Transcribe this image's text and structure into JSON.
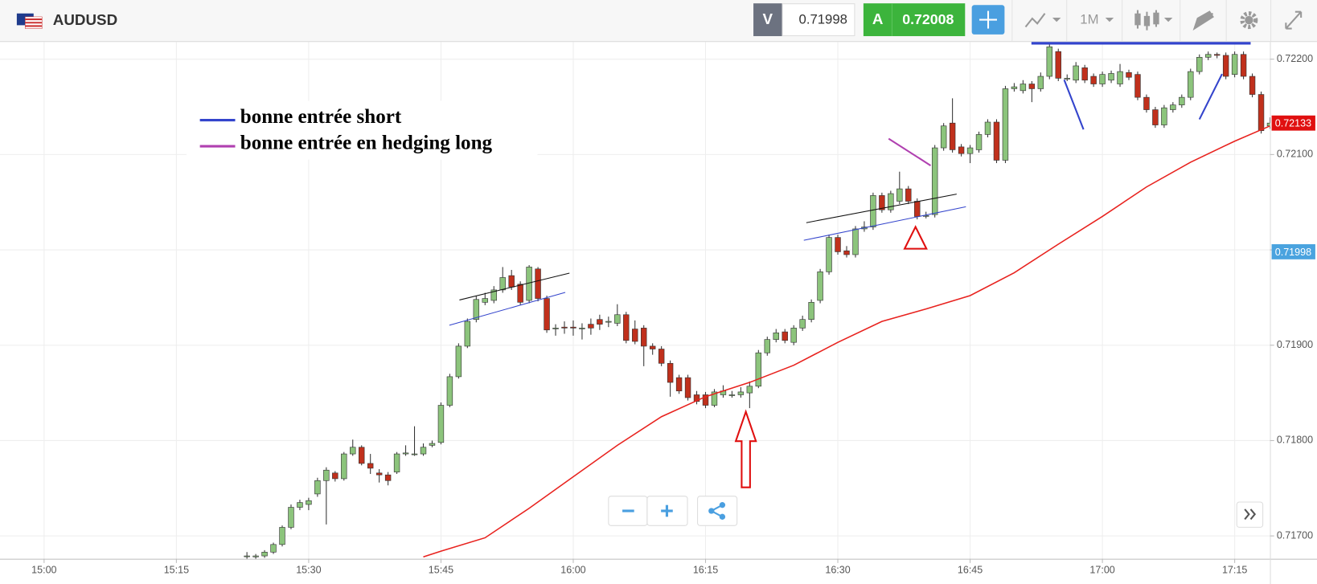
{
  "header": {
    "symbol": "AUDUSD",
    "bid_label": "V",
    "bid": "0.71998",
    "ask_label": "A",
    "ask": "0.72008",
    "timeframe": "1M"
  },
  "chart_data": {
    "type": "candlestick",
    "up_color": "#8cc47c",
    "down_color": "#c0301c",
    "outline_color": "#333333",
    "grid": true,
    "xlim": [
      "14:55",
      "17:19"
    ],
    "xticks": [
      "15:00",
      "15:15",
      "15:30",
      "15:45",
      "16:00",
      "16:15",
      "16:30",
      "16:45",
      "17:00",
      "17:15"
    ],
    "ylim": [
      0.71676,
      0.72218
    ],
    "yticks": [
      {
        "value": 0.717,
        "label": "0.71700"
      },
      {
        "value": 0.718,
        "label": "0.71800"
      },
      {
        "value": 0.719,
        "label": "0.71900"
      },
      {
        "value": 0.72,
        "label": "0.72000"
      },
      {
        "value": 0.721,
        "label": "0.72100"
      },
      {
        "value": 0.722,
        "label": "0.72200"
      }
    ],
    "x": [
      "15:23",
      "15:24",
      "15:25",
      "15:26",
      "15:27",
      "15:28",
      "15:29",
      "15:30",
      "15:31",
      "15:32",
      "15:33",
      "15:34",
      "15:35",
      "15:36",
      "15:37",
      "15:38",
      "15:39",
      "15:40",
      "15:41",
      "15:42",
      "15:43",
      "15:44",
      "15:45",
      "15:46",
      "15:47",
      "15:48",
      "15:49",
      "15:50",
      "15:51",
      "15:52",
      "15:53",
      "15:54",
      "15:55",
      "15:56",
      "15:57",
      "15:58",
      "15:59",
      "16:00",
      "16:01",
      "16:02",
      "16:03",
      "16:04",
      "16:05",
      "16:06",
      "16:07",
      "16:08",
      "16:09",
      "16:10",
      "16:11",
      "16:12",
      "16:13",
      "16:14",
      "16:15",
      "16:16",
      "16:17",
      "16:18",
      "16:19",
      "16:20",
      "16:21",
      "16:22",
      "16:23",
      "16:24",
      "16:25",
      "16:26",
      "16:27",
      "16:28",
      "16:29",
      "16:30",
      "16:31",
      "16:32",
      "16:33",
      "16:34",
      "16:35",
      "16:36",
      "16:37",
      "16:38",
      "16:39",
      "16:40",
      "16:41",
      "16:42",
      "16:43",
      "16:44",
      "16:45",
      "16:46",
      "16:47",
      "16:48",
      "16:49",
      "16:50",
      "16:51",
      "16:52",
      "16:53",
      "16:54",
      "16:55",
      "16:56",
      "16:57",
      "16:58",
      "16:59",
      "17:00",
      "17:01",
      "17:02",
      "17:03",
      "17:04",
      "17:05",
      "17:06",
      "17:07",
      "17:08",
      "17:09",
      "17:10",
      "17:11",
      "17:12",
      "17:13",
      "17:14",
      "17:15",
      "17:16",
      "17:17",
      "17:18",
      "17:19"
    ],
    "open": [
      0.71679,
      0.71678,
      0.71679,
      0.71683,
      0.71691,
      0.71709,
      0.7173,
      0.71733,
      0.71744,
      0.71758,
      0.71766,
      0.7176,
      0.71786,
      0.71793,
      0.71776,
      0.71766,
      0.71764,
      0.71767,
      0.71786,
      0.71786,
      0.71786,
      0.71795,
      0.71798,
      0.71837,
      0.71867,
      0.71899,
      0.71927,
      0.71945,
      0.71947,
      0.71958,
      0.71973,
      0.71964,
      0.71947,
      0.7198,
      0.71949,
      0.71918,
      0.71919,
      0.71919,
      0.71918,
      0.71922,
      0.71927,
      0.71925,
      0.71923,
      0.71932,
      0.71917,
      0.71918,
      0.71899,
      0.71896,
      0.71881,
      0.71866,
      0.71866,
      0.71848,
      0.71848,
      0.71837,
      0.71848,
      0.71848,
      0.71848,
      0.7185,
      0.71857,
      0.71892,
      0.71906,
      0.71914,
      0.71903,
      0.71918,
      0.71927,
      0.71947,
      0.71977,
      0.72013,
      0.71999,
      0.71995,
      0.72022,
      0.72024,
      0.72057,
      0.72042,
      0.72051,
      0.72064,
      0.72051,
      0.72036,
      0.72037,
      0.72107,
      0.72133,
      0.72108,
      0.72101,
      0.72105,
      0.72121,
      0.72134,
      0.72094,
      0.72169,
      0.72167,
      0.72174,
      0.72169,
      0.72182,
      0.72208,
      0.7218,
      0.72178,
      0.72191,
      0.72182,
      0.72174,
      0.72178,
      0.72174,
      0.72186,
      0.72184,
      0.7216,
      0.72147,
      0.72131,
      0.72147,
      0.72152,
      0.7216,
      0.72187,
      0.72202,
      0.72205,
      0.72204,
      0.72184,
      0.72205,
      0.72182,
      0.72163,
      0.7213
    ],
    "high": [
      0.71683,
      0.71681,
      0.71685,
      0.71693,
      0.71711,
      0.71733,
      0.71738,
      0.7174,
      0.71761,
      0.71772,
      0.71768,
      0.71788,
      0.71801,
      0.71795,
      0.71786,
      0.7177,
      0.71767,
      0.71788,
      0.71795,
      0.71815,
      0.71797,
      0.718,
      0.7184,
      0.7187,
      0.71902,
      0.71928,
      0.71952,
      0.71955,
      0.71962,
      0.71982,
      0.71979,
      0.71967,
      0.71984,
      0.71982,
      0.71952,
      0.71922,
      0.71925,
      0.71926,
      0.71923,
      0.71928,
      0.71932,
      0.7193,
      0.71943,
      0.71935,
      0.71926,
      0.71921,
      0.71902,
      0.71899,
      0.71884,
      0.71869,
      0.71869,
      0.71852,
      0.71851,
      0.71854,
      0.71858,
      0.71852,
      0.71856,
      0.71862,
      0.71895,
      0.71909,
      0.71917,
      0.71917,
      0.71921,
      0.71931,
      0.71948,
      0.7198,
      0.72016,
      0.72016,
      0.72004,
      0.72025,
      0.7203,
      0.7206,
      0.7206,
      0.72062,
      0.72082,
      0.72067,
      0.72054,
      0.7204,
      0.7211,
      0.72133,
      0.72159,
      0.72111,
      0.7211,
      0.72124,
      0.72137,
      0.72137,
      0.72172,
      0.72175,
      0.72178,
      0.72177,
      0.72186,
      0.72216,
      0.72211,
      0.72184,
      0.72197,
      0.72194,
      0.72185,
      0.72187,
      0.72188,
      0.72195,
      0.72189,
      0.72187,
      0.72163,
      0.7215,
      0.72152,
      0.72155,
      0.72163,
      0.7219,
      0.72205,
      0.72208,
      0.72207,
      0.72207,
      0.72208,
      0.72208,
      0.72185,
      0.72166,
      0.72139
    ],
    "low": [
      0.71676,
      0.71676,
      0.71677,
      0.71681,
      0.71689,
      0.71707,
      0.71727,
      0.71727,
      0.71741,
      0.71712,
      0.71757,
      0.71758,
      0.71784,
      0.71774,
      0.71765,
      0.71756,
      0.71753,
      0.71765,
      0.71784,
      0.71784,
      0.71784,
      0.71793,
      0.71796,
      0.71835,
      0.71865,
      0.71897,
      0.71924,
      0.71942,
      0.71944,
      0.71955,
      0.71958,
      0.71942,
      0.71944,
      0.71946,
      0.71913,
      0.7191,
      0.71912,
      0.7191,
      0.71906,
      0.71911,
      0.71916,
      0.71919,
      0.7192,
      0.71902,
      0.71901,
      0.71878,
      0.7189,
      0.71878,
      0.71846,
      0.71849,
      0.71842,
      0.71838,
      0.71834,
      0.71835,
      0.71845,
      0.71845,
      0.71845,
      0.71834,
      0.71855,
      0.71889,
      0.71903,
      0.71902,
      0.719,
      0.71915,
      0.71924,
      0.71944,
      0.71974,
      0.71995,
      0.71992,
      0.71992,
      0.72019,
      0.72021,
      0.72039,
      0.72039,
      0.72048,
      0.72048,
      0.72032,
      0.72033,
      0.72034,
      0.72104,
      0.72102,
      0.72098,
      0.72091,
      0.72102,
      0.72118,
      0.72091,
      0.72091,
      0.72166,
      0.72164,
      0.72155,
      0.72166,
      0.72179,
      0.72177,
      0.72177,
      0.72175,
      0.72175,
      0.72171,
      0.72171,
      0.72175,
      0.72171,
      0.72178,
      0.72157,
      0.72144,
      0.72128,
      0.72128,
      0.72144,
      0.72149,
      0.72157,
      0.72184,
      0.72199,
      0.72201,
      0.72179,
      0.72181,
      0.72179,
      0.7216,
      0.72122,
      0.72127
    ],
    "close": [
      0.71679,
      0.71679,
      0.71683,
      0.71691,
      0.71709,
      0.7173,
      0.71735,
      0.71737,
      0.71758,
      0.71769,
      0.7176,
      0.71786,
      0.71793,
      0.71776,
      0.71771,
      0.71764,
      0.71758,
      0.71786,
      0.71787,
      0.71786,
      0.71793,
      0.71797,
      0.71837,
      0.71867,
      0.71899,
      0.71925,
      0.71948,
      0.71949,
      0.71958,
      0.71971,
      0.71961,
      0.71945,
      0.71982,
      0.71949,
      0.71916,
      0.71918,
      0.71918,
      0.71918,
      0.71918,
      0.71918,
      0.71922,
      0.71925,
      0.71932,
      0.71905,
      0.71904,
      0.71899,
      0.71896,
      0.71881,
      0.71861,
      0.71852,
      0.71845,
      0.71841,
      0.71837,
      0.71851,
      0.71852,
      0.71848,
      0.71851,
      0.71857,
      0.71892,
      0.71906,
      0.71913,
      0.71905,
      0.71918,
      0.71927,
      0.71945,
      0.71977,
      0.72013,
      0.71998,
      0.71995,
      0.72022,
      0.72024,
      0.72057,
      0.72042,
      0.72059,
      0.72064,
      0.72051,
      0.72035,
      0.72036,
      0.72107,
      0.7213,
      0.72105,
      0.72101,
      0.72107,
      0.72121,
      0.72134,
      0.72094,
      0.72169,
      0.72171,
      0.72174,
      0.72169,
      0.72182,
      0.72213,
      0.7218,
      0.7218,
      0.72193,
      0.72178,
      0.72174,
      0.72184,
      0.72185,
      0.72187,
      0.72181,
      0.7216,
      0.72147,
      0.72131,
      0.72149,
      0.72152,
      0.7216,
      0.72187,
      0.72202,
      0.72205,
      0.72204,
      0.72182,
      0.72205,
      0.72182,
      0.72163,
      0.72125,
      0.72133
    ],
    "overlay": {
      "type": "line",
      "color": "#e8221e",
      "x": [
        "15:43",
        "15:45",
        "15:50",
        "15:55",
        "16:00",
        "16:05",
        "16:10",
        "16:15",
        "16:20",
        "16:25",
        "16:30",
        "16:35",
        "16:40",
        "16:45",
        "16:50",
        "16:55",
        "17:00",
        "17:05",
        "17:10",
        "17:15",
        "17:19"
      ],
      "values": [
        0.71678,
        0.71684,
        0.71698,
        0.71729,
        0.71762,
        0.71795,
        0.71825,
        0.71846,
        0.71861,
        0.71879,
        0.71903,
        0.71925,
        0.71938,
        0.71952,
        0.71976,
        0.72006,
        0.72035,
        0.72066,
        0.72092,
        0.72114,
        0.7213
      ]
    },
    "price_tags": [
      {
        "value": 0.72133,
        "color": "#e01010"
      },
      {
        "value": 0.71998,
        "color": "#4aa3df"
      }
    ],
    "legend": [
      {
        "label": "bonne entrée short",
        "color": "#3344cc"
      },
      {
        "label": "bonne entrée en hedging long",
        "color": "#b040b0"
      }
    ]
  }
}
